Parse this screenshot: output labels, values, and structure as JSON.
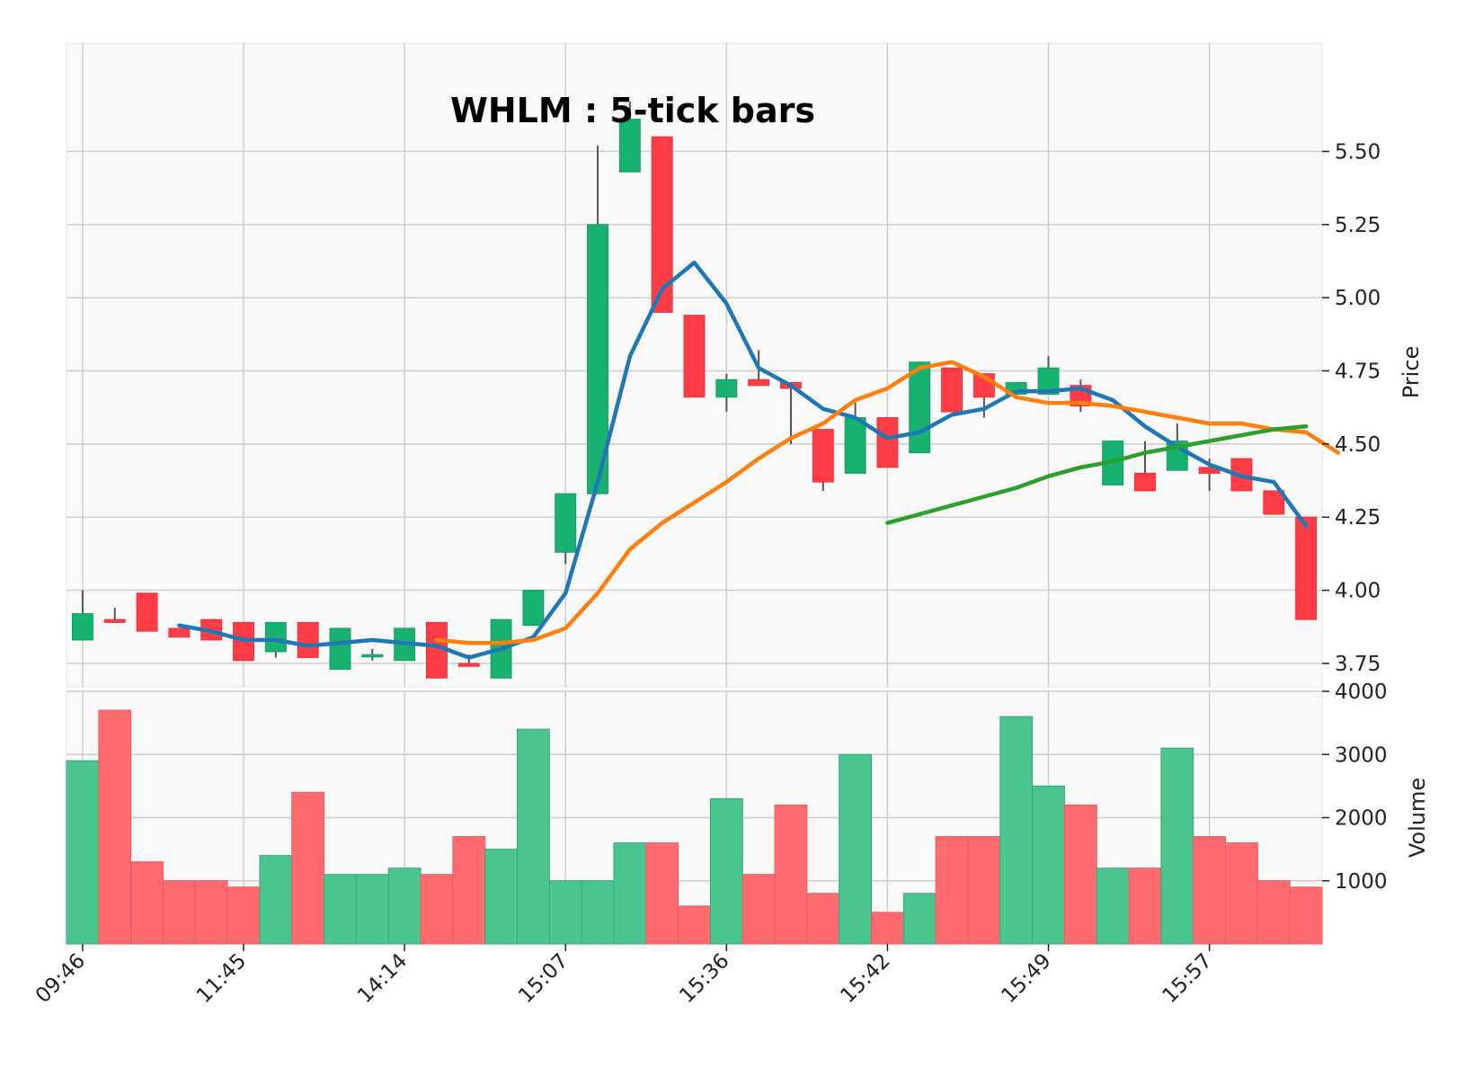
{
  "chart_data": {
    "type": "candlestick",
    "title": "WHLM : 5-tick bars",
    "price_axis": {
      "label": "Price",
      "ylim": [
        3.67,
        5.87
      ],
      "ticks": [
        3.75,
        4.0,
        4.25,
        4.5,
        4.75,
        5.0,
        5.25,
        5.5
      ],
      "tick_labels": [
        "3.75",
        "4.00",
        "4.25",
        "4.50",
        "4.75",
        "5.00",
        "5.25",
        "5.50"
      ],
      "position": "right"
    },
    "volume_axis": {
      "label": "Volume",
      "ylim": [
        0,
        4000
      ],
      "ticks": [
        1000,
        2000,
        3000,
        4000
      ],
      "tick_labels": [
        "1000",
        "2000",
        "3000",
        "4000"
      ],
      "position": "right"
    },
    "x_ticks": [
      {
        "index": 0,
        "label": "09:46"
      },
      {
        "index": 5,
        "label": "11:45"
      },
      {
        "index": 10,
        "label": "14:14"
      },
      {
        "index": 15,
        "label": "15:07"
      },
      {
        "index": 20,
        "label": "15:36"
      },
      {
        "index": 25,
        "label": "15:42"
      },
      {
        "index": 30,
        "label": "15:49"
      },
      {
        "index": 35,
        "label": "15:57"
      }
    ],
    "grid": true,
    "colors": {
      "up": "#26a69a",
      "up_body": "#17b26f",
      "down": "#ef5350",
      "down_body": "#ff3d47",
      "volume_up": "#4bc590",
      "volume_down": "#ff6b6e",
      "wick": "#555555",
      "ma1": "#1f77b4",
      "ma2": "#ff7f0e",
      "ma3": "#2ca02c",
      "plot_bg": "#f9f9f9",
      "grid": "#cccccc"
    },
    "candles": [
      {
        "o": 3.83,
        "h": 4.0,
        "l": 3.83,
        "c": 3.92,
        "v": 2900
      },
      {
        "o": 3.9,
        "h": 3.94,
        "l": 3.89,
        "c": 3.89,
        "v": 3700
      },
      {
        "o": 3.99,
        "h": 3.99,
        "l": 3.86,
        "c": 3.86,
        "v": 1300
      },
      {
        "o": 3.87,
        "h": 3.87,
        "l": 3.84,
        "c": 3.84,
        "v": 1000
      },
      {
        "o": 3.9,
        "h": 3.9,
        "l": 3.83,
        "c": 3.83,
        "v": 1000
      },
      {
        "o": 3.89,
        "h": 3.89,
        "l": 3.76,
        "c": 3.76,
        "v": 900
      },
      {
        "o": 3.79,
        "h": 3.89,
        "l": 3.77,
        "c": 3.89,
        "v": 1400
      },
      {
        "o": 3.89,
        "h": 3.89,
        "l": 3.77,
        "c": 3.77,
        "v": 2400
      },
      {
        "o": 3.73,
        "h": 3.87,
        "l": 3.73,
        "c": 3.87,
        "v": 1100
      },
      {
        "o": 3.78,
        "h": 3.8,
        "l": 3.76,
        "c": 3.78,
        "v": 1100
      },
      {
        "o": 3.76,
        "h": 3.87,
        "l": 3.76,
        "c": 3.87,
        "v": 1200
      },
      {
        "o": 3.89,
        "h": 3.89,
        "l": 3.7,
        "c": 3.7,
        "v": 1100
      },
      {
        "o": 3.75,
        "h": 3.78,
        "l": 3.74,
        "c": 3.74,
        "v": 1700
      },
      {
        "o": 3.7,
        "h": 3.9,
        "l": 3.7,
        "c": 3.9,
        "v": 1500
      },
      {
        "o": 3.88,
        "h": 4.0,
        "l": 3.88,
        "c": 4.0,
        "v": 3400
      },
      {
        "o": 4.13,
        "h": 4.33,
        "l": 4.09,
        "c": 4.33,
        "v": 1000
      },
      {
        "o": 4.33,
        "h": 5.52,
        "l": 4.33,
        "c": 5.25,
        "v": 1000
      },
      {
        "o": 5.43,
        "h": 5.67,
        "l": 5.43,
        "c": 5.61,
        "v": 1600
      },
      {
        "o": 5.55,
        "h": 5.55,
        "l": 4.95,
        "c": 4.95,
        "v": 1600
      },
      {
        "o": 4.94,
        "h": 4.94,
        "l": 4.66,
        "c": 4.66,
        "v": 600
      },
      {
        "o": 4.66,
        "h": 4.74,
        "l": 4.61,
        "c": 4.72,
        "v": 2300
      },
      {
        "o": 4.72,
        "h": 4.82,
        "l": 4.7,
        "c": 4.7,
        "v": 1100
      },
      {
        "o": 4.71,
        "h": 4.71,
        "l": 4.5,
        "c": 4.69,
        "v": 2200
      },
      {
        "o": 4.55,
        "h": 4.55,
        "l": 4.34,
        "c": 4.37,
        "v": 800
      },
      {
        "o": 4.4,
        "h": 4.64,
        "l": 4.4,
        "c": 4.59,
        "v": 3000
      },
      {
        "o": 4.59,
        "h": 4.59,
        "l": 4.42,
        "c": 4.42,
        "v": 500
      },
      {
        "o": 4.47,
        "h": 4.78,
        "l": 4.47,
        "c": 4.78,
        "v": 800
      },
      {
        "o": 4.76,
        "h": 4.76,
        "l": 4.61,
        "c": 4.61,
        "v": 1700
      },
      {
        "o": 4.74,
        "h": 4.74,
        "l": 4.59,
        "c": 4.66,
        "v": 1700
      },
      {
        "o": 4.67,
        "h": 4.71,
        "l": 4.67,
        "c": 4.71,
        "v": 3600
      },
      {
        "o": 4.67,
        "h": 4.8,
        "l": 4.67,
        "c": 4.76,
        "v": 2500
      },
      {
        "o": 4.7,
        "h": 4.72,
        "l": 4.61,
        "c": 4.63,
        "v": 2200
      },
      {
        "o": 4.36,
        "h": 4.51,
        "l": 4.36,
        "c": 4.51,
        "v": 1200
      },
      {
        "o": 4.4,
        "h": 4.51,
        "l": 4.34,
        "c": 4.34,
        "v": 1200
      },
      {
        "o": 4.41,
        "h": 4.57,
        "l": 4.41,
        "c": 4.51,
        "v": 3100
      },
      {
        "o": 4.42,
        "h": 4.45,
        "l": 4.34,
        "c": 4.4,
        "v": 1700
      },
      {
        "o": 4.45,
        "h": 4.45,
        "l": 4.34,
        "c": 4.34,
        "v": 1600
      },
      {
        "o": 4.34,
        "h": 4.34,
        "l": 4.26,
        "c": 4.26,
        "v": 1000
      },
      {
        "o": 4.25,
        "h": 4.25,
        "l": 3.9,
        "c": 3.9,
        "v": 900
      }
    ],
    "moving_averages": [
      {
        "period": 4,
        "color": "#1f77b4",
        "start": 3,
        "values": [
          3.88,
          3.86,
          3.83,
          3.83,
          3.81,
          3.82,
          3.83,
          3.82,
          3.81,
          3.77,
          3.8,
          3.84,
          3.99,
          4.37,
          4.8,
          5.03,
          5.12,
          4.98,
          4.76,
          4.7,
          4.62,
          4.59,
          4.52,
          4.54,
          4.6,
          4.62,
          4.68,
          4.68,
          4.69,
          4.65,
          4.56,
          4.49,
          4.43,
          4.39,
          4.37,
          4.22
        ]
      },
      {
        "period": 12,
        "color": "#ff7f0e",
        "start": 11,
        "values": [
          3.83,
          3.82,
          3.82,
          3.83,
          3.87,
          3.99,
          4.14,
          4.23,
          4.3,
          4.37,
          4.45,
          4.52,
          4.57,
          4.65,
          4.69,
          4.76,
          4.78,
          4.73,
          4.66,
          4.64,
          4.64,
          4.63,
          4.61,
          4.59,
          4.57,
          4.57,
          4.55,
          4.54,
          4.47
        ]
      },
      {
        "period": 26,
        "color": "#2ca02c",
        "start": 25,
        "values": [
          4.23,
          4.26,
          4.29,
          4.32,
          4.35,
          4.39,
          4.42,
          4.44,
          4.47,
          4.49,
          4.51,
          4.53,
          4.55,
          4.56
        ]
      }
    ]
  }
}
